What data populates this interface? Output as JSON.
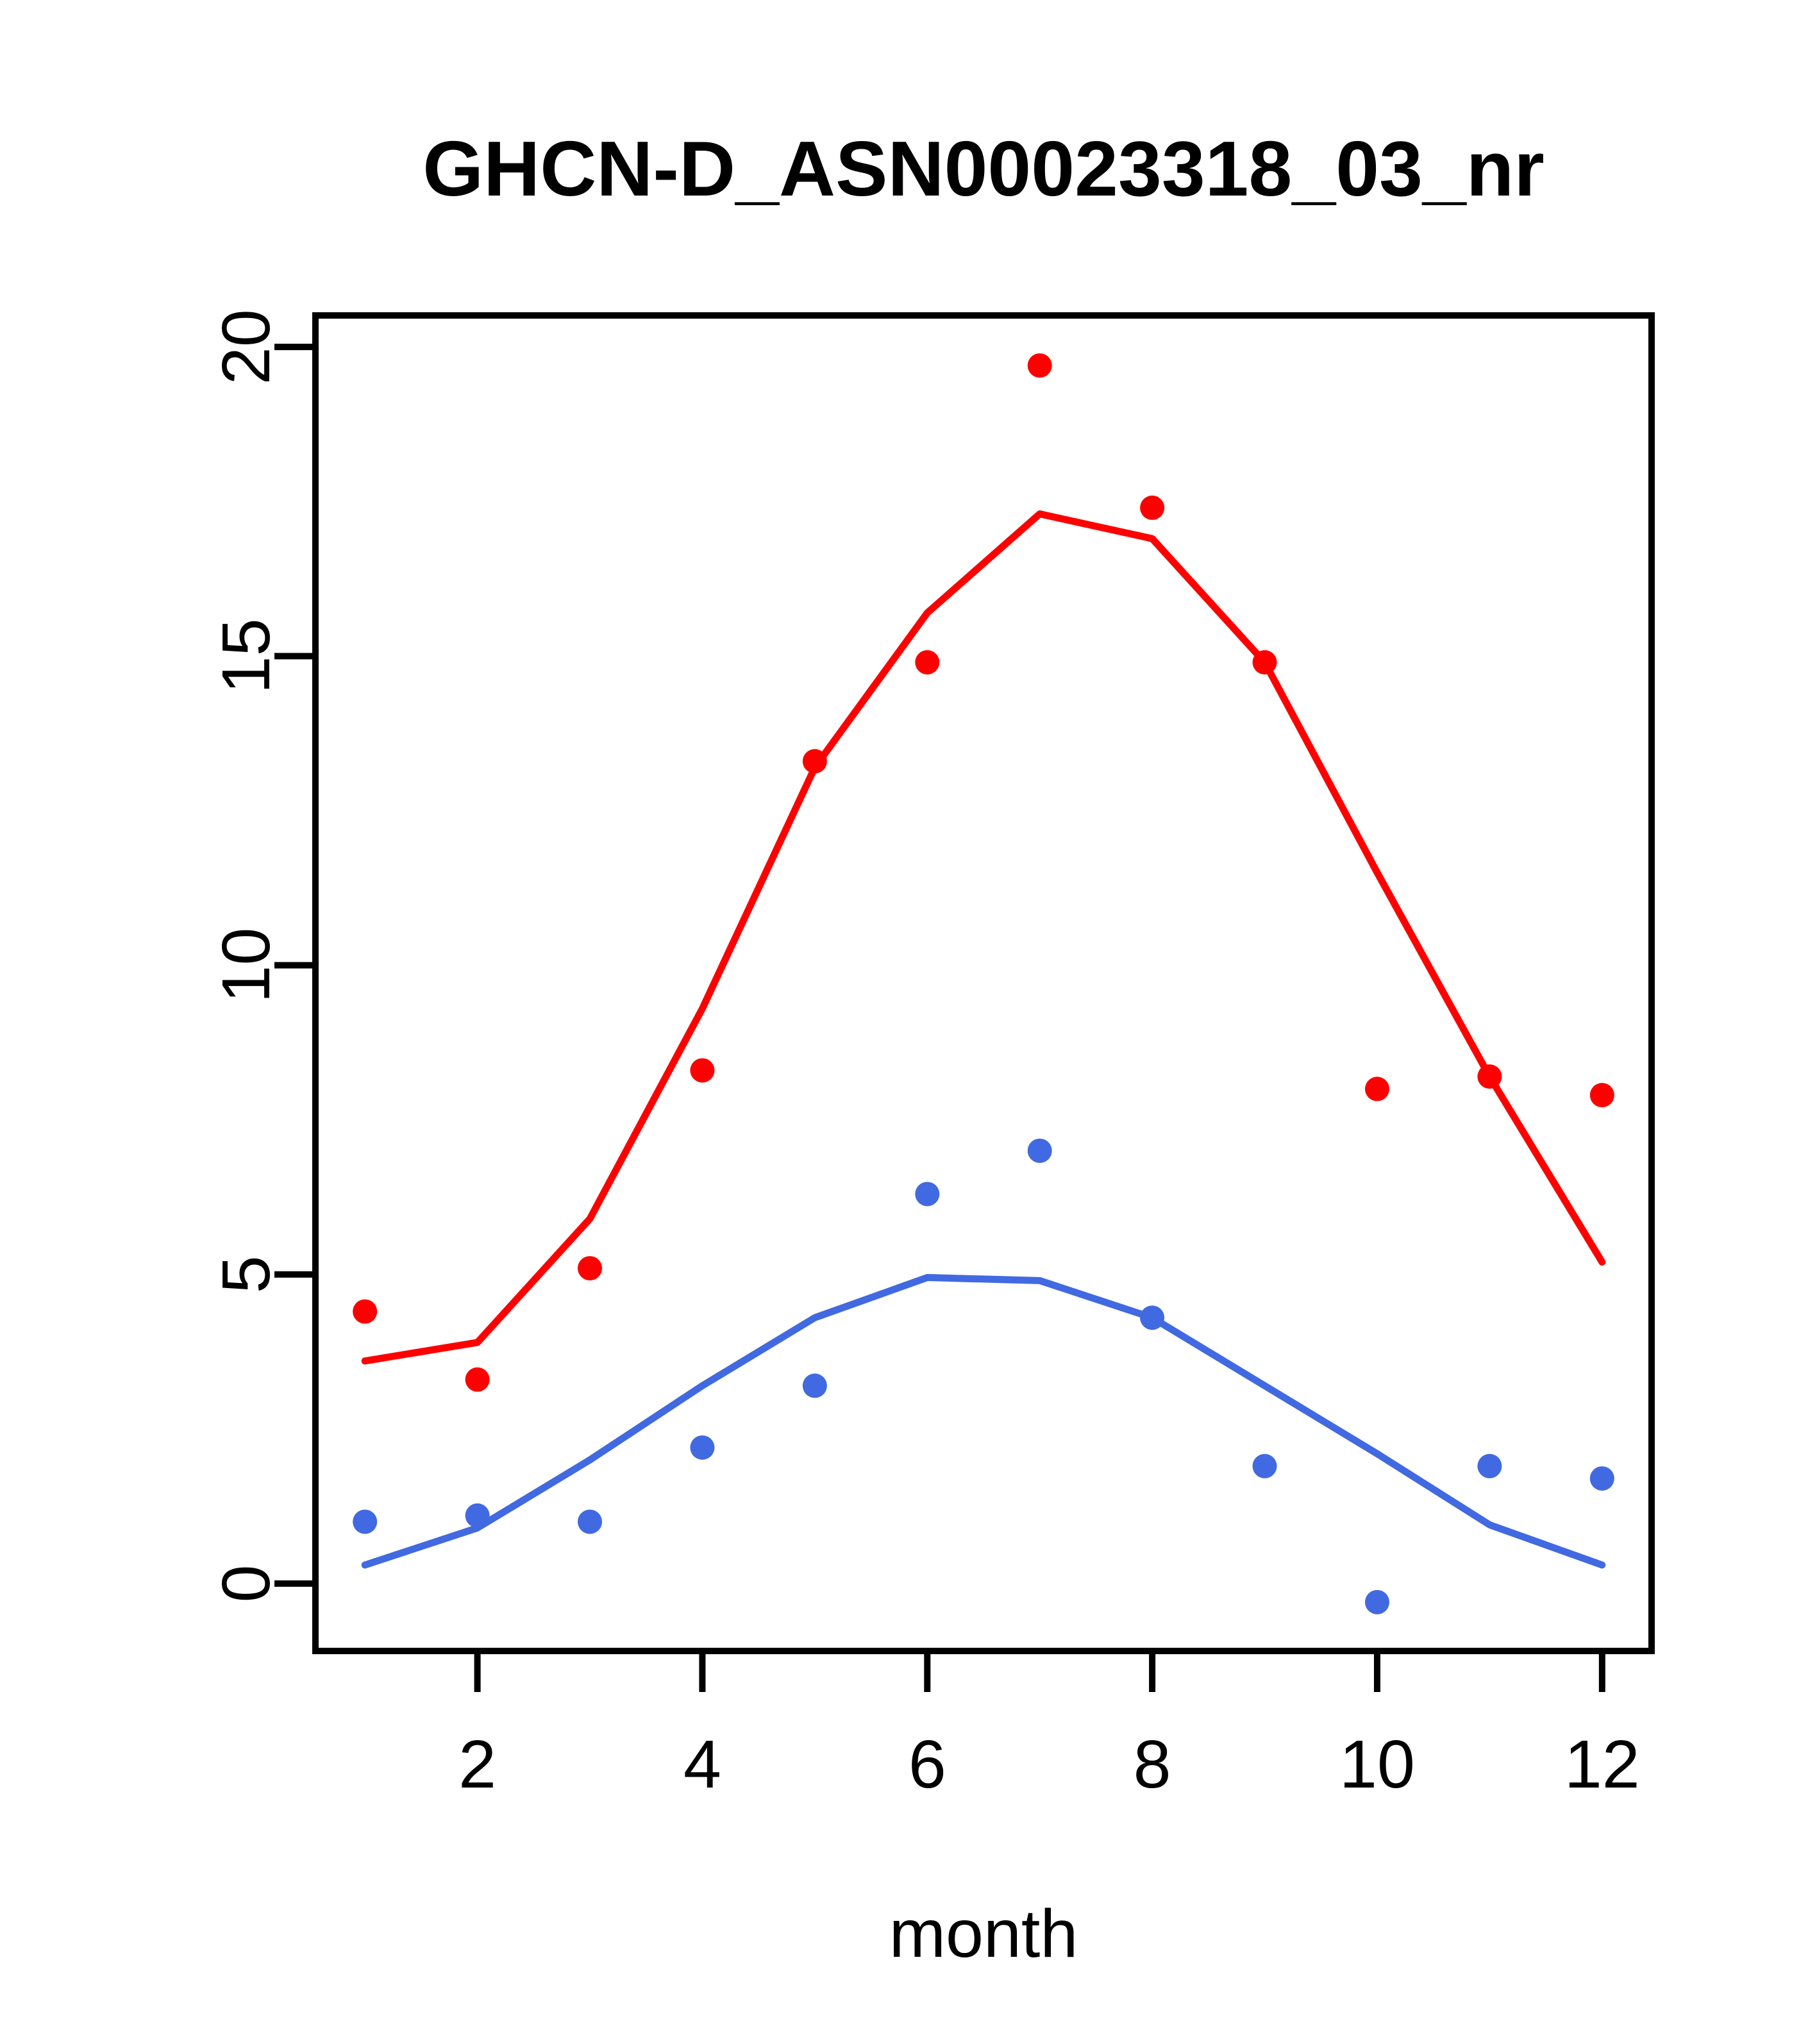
{
  "title": "GHCN-D_ASN00023318_03_nr",
  "colors": {
    "red_series": "#ff0000",
    "blue_series": "#4169e1",
    "axis": "#000000",
    "background": "#ffffff"
  },
  "chart_data": {
    "type": "scatter",
    "title": "GHCN-D_ASN00023318_03_nr",
    "xlabel": "month",
    "ylabel": "",
    "x": [
      1,
      2,
      3,
      4,
      5,
      6,
      7,
      8,
      9,
      10,
      11,
      12
    ],
    "x_ticks": [
      2,
      4,
      6,
      8,
      10,
      12
    ],
    "x_tick_labels": [
      "2",
      "4",
      "6",
      "8",
      "10",
      "12"
    ],
    "y_ticks": [
      0,
      5,
      10,
      15,
      20
    ],
    "y_tick_labels": [
      "0",
      "5",
      "10",
      "15",
      "20"
    ],
    "xlim": [
      0.56,
      12.44
    ],
    "ylim": [
      -1.09,
      20.51
    ],
    "grid": false,
    "legend": null,
    "series": [
      {
        "name": "red-points",
        "kind": "scatter",
        "color_key": "red_series",
        "values": [
          4.4,
          3.3,
          5.1,
          8.3,
          13.3,
          14.9,
          19.7,
          17.4,
          14.9,
          8.0,
          8.2,
          7.9
        ]
      },
      {
        "name": "red-smooth-line",
        "kind": "line",
        "color_key": "red_series",
        "values": [
          3.6,
          3.9,
          5.9,
          9.3,
          13.2,
          15.7,
          17.3,
          16.9,
          14.9,
          11.5,
          8.2,
          5.2
        ]
      },
      {
        "name": "blue-points",
        "kind": "scatter",
        "color_key": "blue_series",
        "values": [
          1.0,
          1.1,
          1.0,
          2.2,
          3.2,
          6.3,
          7.0,
          4.3,
          1.9,
          -0.3,
          1.9,
          1.7
        ]
      },
      {
        "name": "blue-smooth-line",
        "kind": "line",
        "color_key": "blue_series",
        "values": [
          0.3,
          0.9,
          2.0,
          3.2,
          4.3,
          4.95,
          4.9,
          4.3,
          3.2,
          2.1,
          0.95,
          0.3
        ]
      }
    ]
  }
}
